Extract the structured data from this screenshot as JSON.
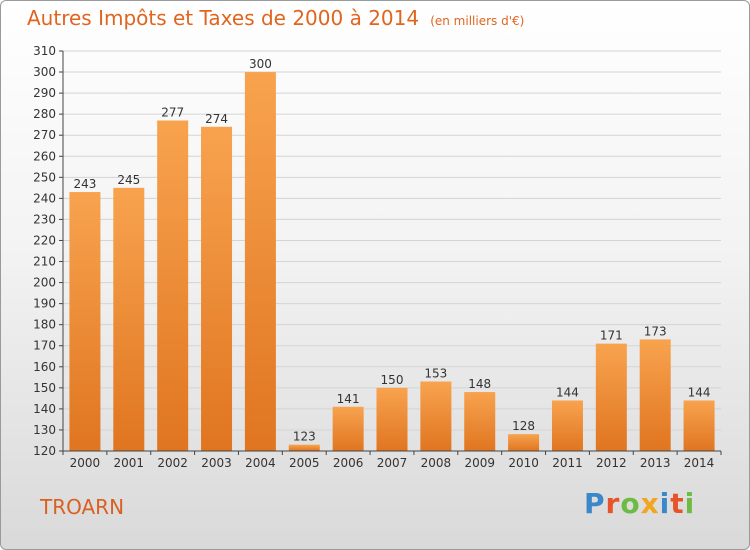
{
  "title": "Autres Impôts et Taxes de 2000 à 2014",
  "unit_note": "(en milliers d'€)",
  "commune": "TROARN",
  "logo": {
    "text": "Proxiti",
    "letter_colors": [
      "#3a87c9",
      "#e8542a",
      "#6dbb43",
      "#f2a51e",
      "#3a87c9",
      "#e8542a",
      "#6dbb43"
    ]
  },
  "colors": {
    "bar_top": "#f8a34f",
    "bar_bottom": "#e07520",
    "accent": "#e0651e"
  },
  "chart_data": {
    "type": "bar",
    "categories": [
      "2000",
      "2001",
      "2002",
      "2003",
      "2004",
      "2005",
      "2006",
      "2007",
      "2008",
      "2009",
      "2010",
      "2011",
      "2012",
      "2013",
      "2014"
    ],
    "values": [
      243,
      245,
      277,
      274,
      300,
      123,
      141,
      150,
      153,
      148,
      128,
      144,
      171,
      173,
      144
    ],
    "ylim": [
      120,
      310
    ],
    "yticks": [
      120,
      130,
      140,
      150,
      160,
      170,
      180,
      190,
      200,
      210,
      220,
      230,
      240,
      250,
      260,
      270,
      280,
      290,
      300,
      310
    ],
    "grid": true
  }
}
